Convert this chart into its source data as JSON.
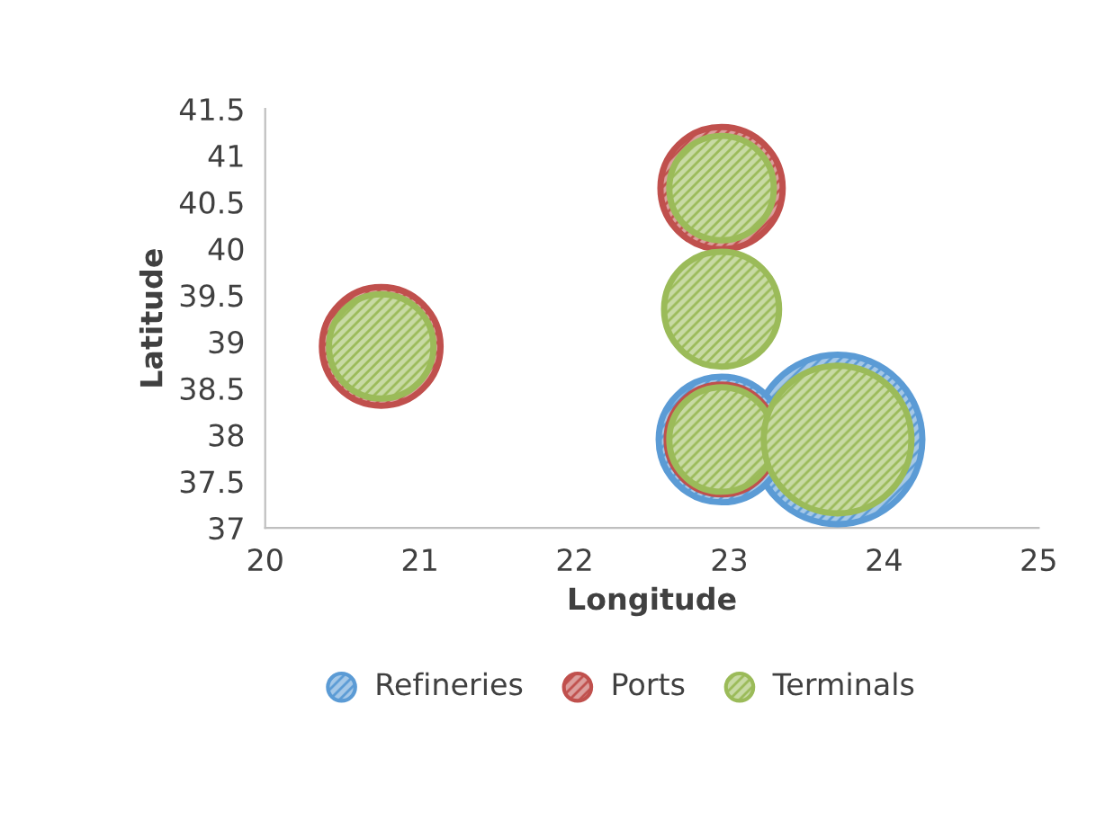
{
  "chart_data": {
    "type": "bubble",
    "xlabel": "Longitude",
    "ylabel": "Latitude",
    "xlim": [
      20,
      25
    ],
    "xticks": [
      20,
      21,
      22,
      23,
      24,
      25
    ],
    "ylim": [
      37,
      41.5
    ],
    "yticks": [
      37,
      37.5,
      38,
      38.5,
      39,
      39.5,
      40,
      40.5,
      41,
      41.5
    ],
    "grid": false,
    "legend": "bottom",
    "series": [
      {
        "name": "Refineries",
        "color": "#5b9bd5",
        "x": [
          23.7,
          22.95
        ],
        "values": [
          37.95,
          37.95
        ],
        "sizes": [
          1,
          0.55
        ]
      },
      {
        "name": "Ports",
        "color": "#c0504d",
        "x": [
          22.95,
          22.95,
          20.75
        ],
        "values": [
          37.95,
          40.65,
          38.95
        ],
        "sizes": [
          0.42,
          0.52,
          0.49
        ]
      },
      {
        "name": "Terminals",
        "color": "#9bbb59",
        "x": [
          22.95,
          22.95,
          20.75,
          22.95,
          23.7
        ],
        "values": [
          40.65,
          39.35,
          38.95,
          37.95,
          37.95
        ],
        "sizes": [
          0.38,
          0.46,
          0.38,
          0.38,
          0.76
        ]
      }
    ]
  }
}
